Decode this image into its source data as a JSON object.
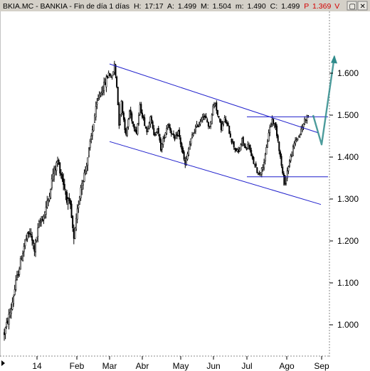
{
  "header": {
    "symbol": "BKIA.MC",
    "name": "BANKIA",
    "period": "Fin de día 1 días",
    "labels": {
      "high": "H:",
      "open": "A:",
      "max": "M:",
      "min": "m:",
      "close": "C:",
      "p": "P"
    },
    "values": {
      "high": "17:17",
      "open": "1.499",
      "max": "1.504",
      "min": "1.490",
      "close": "1.499",
      "p": "1.369"
    },
    "p_suffix": "V",
    "window_buttons": [
      "▢",
      "✕"
    ]
  },
  "colors": {
    "candle": "#000000",
    "channel": "#1f1fcc",
    "projection": "#2e8b8b",
    "grid": "#888888",
    "header_bg": "#d4d0c8",
    "p_value": "#d40000"
  },
  "chart_data": {
    "type": "candlestick",
    "title": "BKIA.MC - BANKIA - Fin de día 1 días",
    "ylim": [
      0.955,
      1.65
    ],
    "yticks": [
      "1.000",
      "1.100",
      "1.200",
      "1.300",
      "1.400",
      "1.500",
      "1.600"
    ],
    "xticks": [
      "14",
      "Feb",
      "Mar",
      "Abr",
      "May",
      "Jun",
      "Jul",
      "Ago",
      "Sep"
    ],
    "grid": false,
    "path_keypoints": [
      [
        0,
        0.98
      ],
      [
        3,
        1.01
      ],
      [
        6,
        1.04
      ],
      [
        10,
        1.1
      ],
      [
        14,
        1.15
      ],
      [
        18,
        1.2
      ],
      [
        22,
        1.22
      ],
      [
        26,
        1.18
      ],
      [
        30,
        1.24
      ],
      [
        34,
        1.26
      ],
      [
        38,
        1.3
      ],
      [
        42,
        1.36
      ],
      [
        46,
        1.39
      ],
      [
        50,
        1.35
      ],
      [
        54,
        1.3
      ],
      [
        57,
        1.28
      ],
      [
        60,
        1.2
      ],
      [
        63,
        1.27
      ],
      [
        66,
        1.33
      ],
      [
        70,
        1.37
      ],
      [
        74,
        1.43
      ],
      [
        78,
        1.5
      ],
      [
        82,
        1.55
      ],
      [
        86,
        1.57
      ],
      [
        90,
        1.6
      ],
      [
        93,
        1.59
      ],
      [
        95,
        1.62
      ],
      [
        97,
        1.57
      ],
      [
        99,
        1.48
      ],
      [
        101,
        1.53
      ],
      [
        103,
        1.49
      ],
      [
        105,
        1.45
      ],
      [
        108,
        1.51
      ],
      [
        111,
        1.48
      ],
      [
        114,
        1.46
      ],
      [
        117,
        1.52
      ],
      [
        120,
        1.49
      ],
      [
        123,
        1.46
      ],
      [
        126,
        1.5
      ],
      [
        129,
        1.45
      ],
      [
        132,
        1.47
      ],
      [
        135,
        1.42
      ],
      [
        138,
        1.45
      ],
      [
        141,
        1.48
      ],
      [
        144,
        1.46
      ],
      [
        147,
        1.44
      ],
      [
        150,
        1.46
      ],
      [
        153,
        1.42
      ],
      [
        156,
        1.38
      ],
      [
        159,
        1.42
      ],
      [
        162,
        1.45
      ],
      [
        165,
        1.47
      ],
      [
        168,
        1.48
      ],
      [
        171,
        1.5
      ],
      [
        174,
        1.49
      ],
      [
        177,
        1.47
      ],
      [
        180,
        1.52
      ],
      [
        182,
        1.53
      ],
      [
        184,
        1.5
      ],
      [
        187,
        1.47
      ],
      [
        190,
        1.49
      ],
      [
        193,
        1.47
      ],
      [
        196,
        1.44
      ],
      [
        199,
        1.42
      ],
      [
        202,
        1.41
      ],
      [
        205,
        1.44
      ],
      [
        208,
        1.42
      ],
      [
        211,
        1.43
      ],
      [
        213,
        1.4
      ],
      [
        216,
        1.38
      ],
      [
        219,
        1.36
      ],
      [
        222,
        1.37
      ],
      [
        225,
        1.4
      ],
      [
        228,
        1.46
      ],
      [
        231,
        1.49
      ],
      [
        234,
        1.47
      ],
      [
        236,
        1.44
      ],
      [
        238,
        1.4
      ],
      [
        240,
        1.36
      ],
      [
        242,
        1.34
      ],
      [
        245,
        1.38
      ],
      [
        248,
        1.41
      ],
      [
        251,
        1.44
      ],
      [
        254,
        1.45
      ],
      [
        257,
        1.47
      ],
      [
        259,
        1.49
      ],
      [
        262,
        1.499
      ]
    ],
    "low_spike": {
      "index": 241,
      "low": 1.332
    },
    "annotations": {
      "channel_upper": {
        "from": [
          "Mar",
          1.622
        ],
        "to": [
          "Ago",
          1.46
        ]
      },
      "channel_lower": {
        "from": [
          "Mar",
          1.437
        ],
        "to": [
          "Sep",
          1.287
        ]
      },
      "resistance": {
        "from": [
          "Jul",
          1.496
        ],
        "to": [
          "Ago",
          1.496
        ],
        "level": 1.496
      },
      "support": {
        "from": [
          "Jul",
          1.353
        ],
        "to": [
          "Sep",
          1.353
        ],
        "level": 1.353
      },
      "projection": [
        [
          1.5,
          1.505
        ],
        [
          1.43,
          1.415
        ],
        [
          1.46,
          1.64
        ]
      ]
    }
  }
}
